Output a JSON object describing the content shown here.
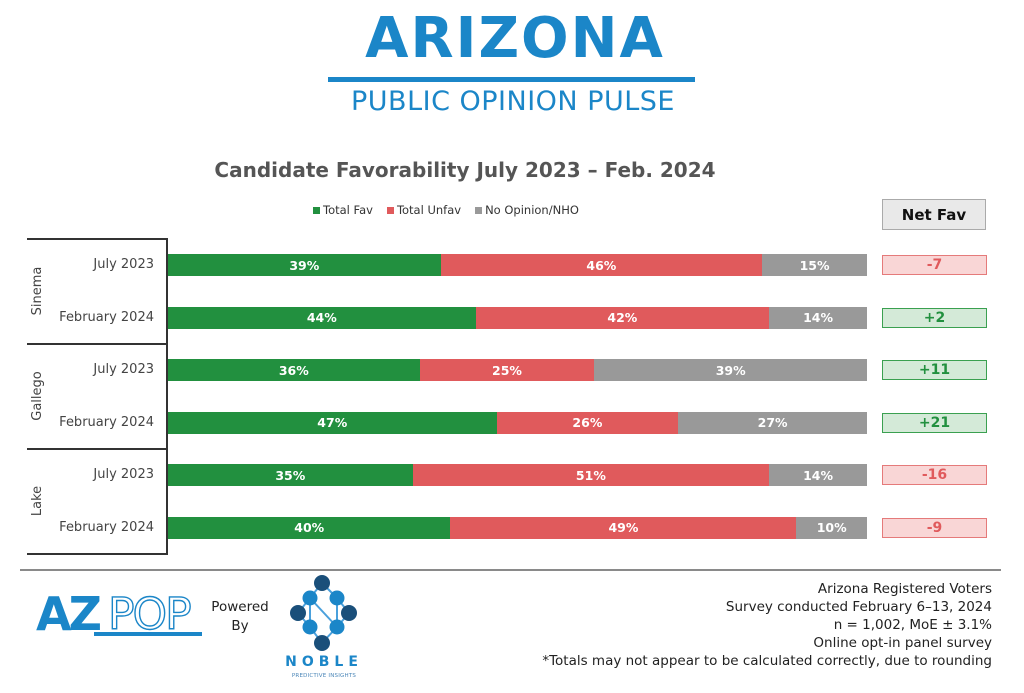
{
  "brand": {
    "title": "ARIZONA",
    "subtitle": "PUBLIC OPINION PULSE",
    "color": "#1b86c8"
  },
  "chart_data": {
    "type": "bar",
    "orientation": "horizontal",
    "stacked": true,
    "normalized": true,
    "title": "Candidate Favorability July 2023 – Feb. 2024",
    "xlabel": "",
    "ylabel": "",
    "xlim": [
      0,
      100
    ],
    "grid": false,
    "legend_position": "top",
    "legend": [
      {
        "name": "Total Fav",
        "color": "#22903f"
      },
      {
        "name": "Total Unfav",
        "color": "#e05a5c"
      },
      {
        "name": "No Opinion/NHO",
        "color": "#999999"
      }
    ],
    "groups": [
      "Sinema",
      "Gallego",
      "Lake"
    ],
    "categories": [
      "July 2023",
      "February 2024",
      "July 2023",
      "February 2024",
      "July 2023",
      "February 2024"
    ],
    "category_groups": [
      "Sinema",
      "Sinema",
      "Gallego",
      "Gallego",
      "Lake",
      "Lake"
    ],
    "series": [
      {
        "name": "Total Fav",
        "values": [
          39,
          44,
          36,
          47,
          35,
          40
        ],
        "labels": [
          "39%",
          "44%",
          "36%",
          "47%",
          "35%",
          "40%"
        ]
      },
      {
        "name": "Total Unfav",
        "values": [
          46,
          42,
          25,
          26,
          51,
          49
        ],
        "labels": [
          "46%",
          "42%",
          "25%",
          "26%",
          "51%",
          "49%"
        ]
      },
      {
        "name": "No Opinion/NHO",
        "values": [
          15,
          14,
          39,
          27,
          14,
          10
        ],
        "labels": [
          "15%",
          "14%",
          "39%",
          "27%",
          "14%",
          "10%"
        ]
      }
    ],
    "net_fav": {
      "header": "Net Fav",
      "values": [
        -7,
        2,
        11,
        21,
        -16,
        -9
      ],
      "labels": [
        "-7",
        "+2",
        "+11",
        "+21",
        "-16",
        "-9"
      ]
    }
  },
  "net_colors": {
    "positive": {
      "bg": "#d4ead8",
      "border": "#3aa050",
      "text": "#22903f"
    },
    "negative": {
      "bg": "#f9d6d6",
      "border": "#e57a7a",
      "text": "#e05a5c"
    }
  },
  "footer": {
    "logo_left": {
      "az": "AZ",
      "pop": "POP"
    },
    "powered_by": [
      "Powered",
      "By"
    ],
    "noble": {
      "name": "NOBLE",
      "tagline": "PREDICTIVE INSIGHTS"
    },
    "notes": [
      "Arizona Registered Voters",
      "Survey conducted February 6–13, 2024",
      "n = 1,002, MoE ± 3.1%",
      "Online opt-in panel survey",
      "*Totals may not appear to be calculated correctly, due to rounding"
    ]
  }
}
